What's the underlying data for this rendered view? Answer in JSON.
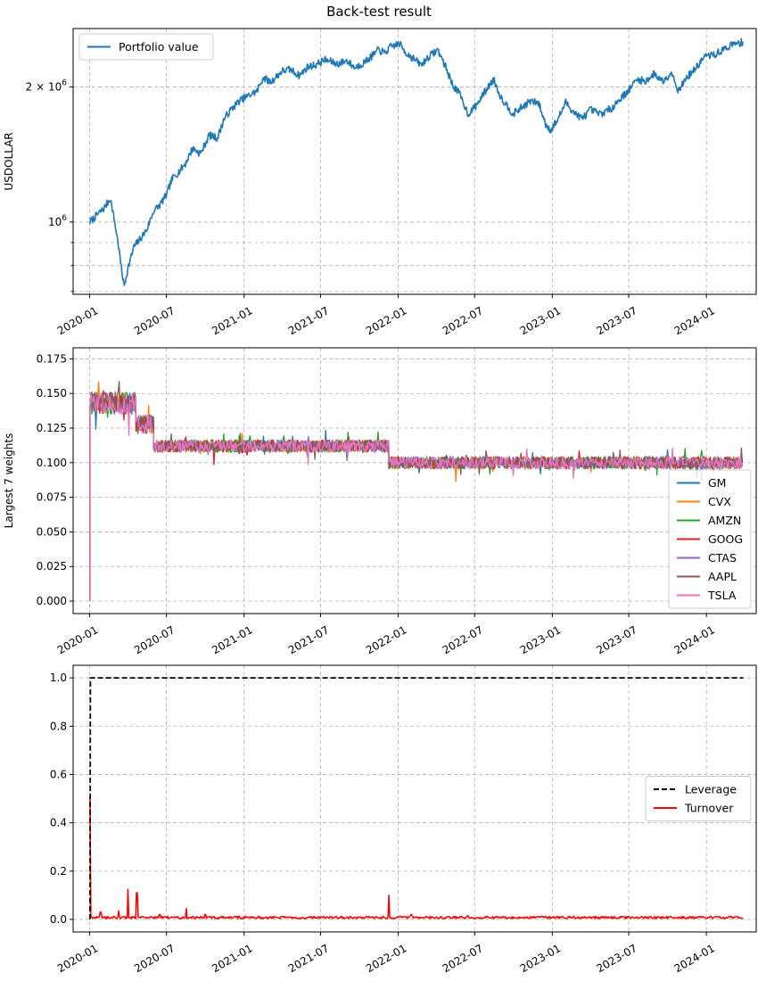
{
  "figure": {
    "title": "Back-test result"
  },
  "chart_data": [
    {
      "type": "line",
      "ylabel": "USDOLLAR",
      "yscale": "log",
      "ylim": [
        690000,
        2700000
      ],
      "xlim": [
        "2019-11-23",
        "2024-04-28"
      ],
      "xticks": [
        "2020-01",
        "2020-07",
        "2021-01",
        "2021-07",
        "2022-01",
        "2022-07",
        "2023-01",
        "2023-07",
        "2024-01"
      ],
      "ytick_labels": [
        {
          "value": 1000000,
          "base": "10",
          "exp": "6"
        },
        {
          "value": 2000000,
          "coef": "2",
          "base": "10",
          "exp": "6"
        }
      ],
      "minor_yticks": [
        700000,
        800000,
        900000
      ],
      "grid": true,
      "legend": {
        "position": "upper-left"
      },
      "series": [
        {
          "name": "Portfolio value",
          "color": "#1f77b4",
          "points": [
            [
              "2020-01-02",
              1000000
            ],
            [
              "2020-01-20",
              1040000
            ],
            [
              "2020-02-05",
              1075000
            ],
            [
              "2020-02-19",
              1130000
            ],
            [
              "2020-02-28",
              1020000
            ],
            [
              "2020-03-10",
              880000
            ],
            [
              "2020-03-16",
              790000
            ],
            [
              "2020-03-23",
              720000
            ],
            [
              "2020-04-01",
              790000
            ],
            [
              "2020-04-15",
              880000
            ],
            [
              "2020-05-01",
              920000
            ],
            [
              "2020-05-15",
              960000
            ],
            [
              "2020-06-01",
              1060000
            ],
            [
              "2020-06-15",
              1090000
            ],
            [
              "2020-07-01",
              1150000
            ],
            [
              "2020-07-15",
              1250000
            ],
            [
              "2020-08-01",
              1300000
            ],
            [
              "2020-08-15",
              1350000
            ],
            [
              "2020-09-01",
              1460000
            ],
            [
              "2020-09-20",
              1420000
            ],
            [
              "2020-10-10",
              1560000
            ],
            [
              "2020-10-30",
              1540000
            ],
            [
              "2020-11-15",
              1700000
            ],
            [
              "2020-12-01",
              1780000
            ],
            [
              "2020-12-20",
              1860000
            ],
            [
              "2021-01-15",
              1920000
            ],
            [
              "2021-02-01",
              1960000
            ],
            [
              "2021-02-15",
              2100000
            ],
            [
              "2021-03-05",
              2050000
            ],
            [
              "2021-04-01",
              2170000
            ],
            [
              "2021-04-20",
              2190000
            ],
            [
              "2021-05-12",
              2120000
            ],
            [
              "2021-06-01",
              2220000
            ],
            [
              "2021-06-20",
              2240000
            ],
            [
              "2021-07-10",
              2300000
            ],
            [
              "2021-07-25",
              2280000
            ],
            [
              "2021-08-10",
              2250000
            ],
            [
              "2021-09-01",
              2290000
            ],
            [
              "2021-09-20",
              2210000
            ],
            [
              "2021-10-10",
              2260000
            ],
            [
              "2021-10-30",
              2340000
            ],
            [
              "2021-11-15",
              2420000
            ],
            [
              "2021-11-30",
              2380000
            ],
            [
              "2021-12-15",
              2460000
            ],
            [
              "2022-01-04",
              2500000
            ],
            [
              "2022-01-20",
              2380000
            ],
            [
              "2022-02-10",
              2300000
            ],
            [
              "2022-02-24",
              2240000
            ],
            [
              "2022-03-15",
              2340000
            ],
            [
              "2022-04-05",
              2420000
            ],
            [
              "2022-04-25",
              2200000
            ],
            [
              "2022-05-10",
              2020000
            ],
            [
              "2022-05-25",
              1940000
            ],
            [
              "2022-06-16",
              1740000
            ],
            [
              "2022-07-05",
              1820000
            ],
            [
              "2022-07-25",
              1950000
            ],
            [
              "2022-08-15",
              2080000
            ],
            [
              "2022-09-01",
              1900000
            ],
            [
              "2022-09-30",
              1740000
            ],
            [
              "2022-10-20",
              1800000
            ],
            [
              "2022-11-10",
              1860000
            ],
            [
              "2022-11-30",
              1840000
            ],
            [
              "2022-12-15",
              1660000
            ],
            [
              "2022-12-28",
              1600000
            ],
            [
              "2023-01-15",
              1700000
            ],
            [
              "2023-02-02",
              1850000
            ],
            [
              "2023-02-20",
              1760000
            ],
            [
              "2023-03-13",
              1700000
            ],
            [
              "2023-04-01",
              1780000
            ],
            [
              "2023-04-25",
              1740000
            ],
            [
              "2023-05-20",
              1790000
            ],
            [
              "2023-06-10",
              1880000
            ],
            [
              "2023-06-30",
              1960000
            ],
            [
              "2023-07-20",
              2080000
            ],
            [
              "2023-08-10",
              2060000
            ],
            [
              "2023-08-30",
              2140000
            ],
            [
              "2023-09-20",
              2060000
            ],
            [
              "2023-10-10",
              2160000
            ],
            [
              "2023-10-27",
              1960000
            ],
            [
              "2023-11-15",
              2100000
            ],
            [
              "2023-12-05",
              2190000
            ],
            [
              "2023-12-28",
              2340000
            ],
            [
              "2024-01-20",
              2360000
            ],
            [
              "2024-02-10",
              2420000
            ],
            [
              "2024-02-28",
              2480000
            ],
            [
              "2024-03-15",
              2500000
            ],
            [
              "2024-03-28",
              2520000
            ]
          ]
        }
      ]
    },
    {
      "type": "line",
      "ylabel": "Largest 7 weights",
      "ylim": [
        -0.009,
        0.183
      ],
      "xlim": [
        "2019-11-23",
        "2024-04-28"
      ],
      "xticks": [
        "2020-01",
        "2020-07",
        "2021-01",
        "2021-07",
        "2022-01",
        "2022-07",
        "2023-01",
        "2023-07",
        "2024-01"
      ],
      "yticks": [
        "0.000",
        "0.025",
        "0.050",
        "0.075",
        "0.100",
        "0.125",
        "0.150",
        "0.175"
      ],
      "grid": true,
      "legend": {
        "position": "lower-right"
      },
      "series": [
        {
          "name": "GM",
          "color": "#1f77b4"
        },
        {
          "name": "CVX",
          "color": "#ff7f0e"
        },
        {
          "name": "AMZN",
          "color": "#2ca02c"
        },
        {
          "name": "GOOG",
          "color": "#d62728"
        },
        {
          "name": "CTAS",
          "color": "#9467bd"
        },
        {
          "name": "AAPL",
          "color": "#8c564b"
        },
        {
          "name": "TSLA",
          "color": "#e377c2"
        }
      ],
      "weight_regimes": [
        {
          "start": "2020-01-02",
          "end": "2020-04-20",
          "level": 0.143
        },
        {
          "start": "2020-04-20",
          "end": "2020-06-01",
          "level": 0.128
        },
        {
          "start": "2020-06-01",
          "end": "2021-12-10",
          "level": 0.112
        },
        {
          "start": "2021-12-10",
          "end": "2024-03-28",
          "level": 0.1
        }
      ]
    },
    {
      "type": "line",
      "ylim": [
        -0.052,
        1.052
      ],
      "xlim": [
        "2019-11-23",
        "2024-04-28"
      ],
      "xticks": [
        "2020-01",
        "2020-07",
        "2021-01",
        "2021-07",
        "2022-01",
        "2022-07",
        "2023-01",
        "2023-07",
        "2024-01"
      ],
      "yticks": [
        "0.0",
        "0.2",
        "0.4",
        "0.6",
        "0.8",
        "1.0"
      ],
      "grid": true,
      "legend": {
        "position": "center-right"
      },
      "series": [
        {
          "name": "Leverage",
          "color": "#000000",
          "dashed": true,
          "points": [
            [
              "2020-01-02",
              0
            ],
            [
              "2020-01-03",
              1.0
            ],
            [
              "2024-03-28",
              1.0
            ]
          ]
        },
        {
          "name": "Turnover",
          "color": "#ff0000",
          "baseline": 0.008,
          "spikes": [
            [
              "2020-01-02",
              0.51
            ],
            [
              "2020-01-27",
              0.03
            ],
            [
              "2020-03-10",
              0.035
            ],
            [
              "2020-04-01",
              0.125
            ],
            [
              "2020-04-22",
              0.11
            ],
            [
              "2020-06-15",
              0.02
            ],
            [
              "2020-08-17",
              0.045
            ],
            [
              "2020-10-01",
              0.02
            ],
            [
              "2021-12-10",
              0.1
            ],
            [
              "2022-02-01",
              0.02
            ],
            [
              "2022-06-15",
              0.015
            ]
          ]
        }
      ]
    }
  ]
}
